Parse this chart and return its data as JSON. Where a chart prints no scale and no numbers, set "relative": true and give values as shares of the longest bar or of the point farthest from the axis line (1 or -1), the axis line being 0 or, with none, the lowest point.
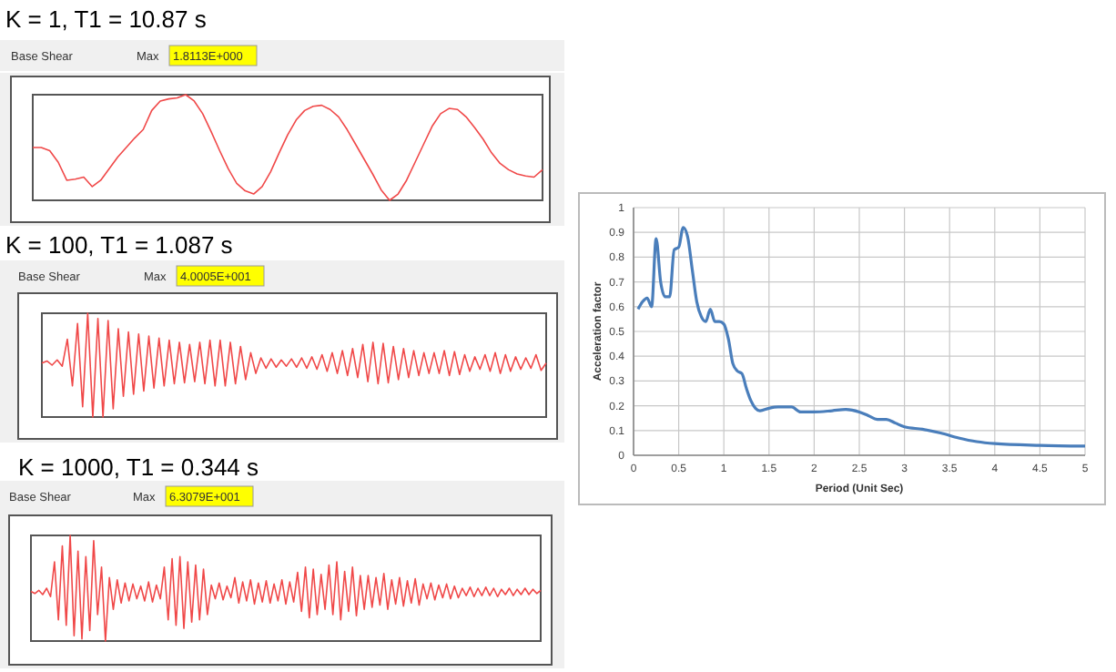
{
  "chart_data": [
    {
      "type": "line",
      "relative": true,
      "title": "K = 1, T1 = 10.87 s",
      "annotations": [
        "Base Shear",
        "Max",
        "1.8113E+000"
      ],
      "color": "#f04848",
      "values": [
        0.5,
        0.5,
        0.47,
        0.36,
        0.19,
        0.2,
        0.22,
        0.13,
        0.19,
        0.3,
        0.41,
        0.5,
        0.59,
        0.67,
        0.85,
        0.94,
        0.96,
        0.97,
        1,
        0.94,
        0.82,
        0.65,
        0.47,
        0.3,
        0.16,
        0.09,
        0.06,
        0.13,
        0.27,
        0.45,
        0.62,
        0.76,
        0.85,
        0.89,
        0.9,
        0.86,
        0.79,
        0.67,
        0.53,
        0.39,
        0.25,
        0.1,
        0,
        0.06,
        0.19,
        0.36,
        0.53,
        0.7,
        0.82,
        0.87,
        0.86,
        0.79,
        0.69,
        0.58,
        0.45,
        0.35,
        0.29,
        0.25,
        0.23,
        0.22,
        0.29
      ]
    },
    {
      "type": "line",
      "relative": true,
      "title": "K = 100, T1 = 1.087 s",
      "annotations": [
        "Base Shear",
        "Max",
        "4.0005E+001"
      ],
      "color": "#f04848",
      "values": [
        0.52,
        0.54,
        0.5,
        0.55,
        0.49,
        0.75,
        0.3,
        0.9,
        0.1,
        1,
        0,
        0.95,
        0,
        0.93,
        0.08,
        0.85,
        0.2,
        0.82,
        0.22,
        0.8,
        0.25,
        0.78,
        0.28,
        0.76,
        0.3,
        0.74,
        0.32,
        0.72,
        0.33,
        0.7,
        0.34,
        0.72,
        0.32,
        0.74,
        0.3,
        0.74,
        0.3,
        0.72,
        0.32,
        0.68,
        0.36,
        0.62,
        0.42,
        0.57,
        0.47,
        0.56,
        0.48,
        0.55,
        0.49,
        0.56,
        0.48,
        0.57,
        0.47,
        0.58,
        0.46,
        0.6,
        0.44,
        0.62,
        0.42,
        0.64,
        0.4,
        0.66,
        0.38,
        0.7,
        0.34,
        0.72,
        0.32,
        0.71,
        0.33,
        0.68,
        0.36,
        0.66,
        0.38,
        0.64,
        0.4,
        0.62,
        0.42,
        0.62,
        0.42,
        0.64,
        0.4,
        0.63,
        0.41,
        0.6,
        0.44,
        0.58,
        0.46,
        0.6,
        0.44,
        0.62,
        0.42,
        0.6,
        0.44,
        0.58,
        0.46,
        0.57,
        0.47,
        0.6,
        0.45,
        0.52
      ]
    },
    {
      "type": "line",
      "relative": true,
      "title": "K = 1000, T1 = 0.344 s",
      "annotations": [
        "Base Shear",
        "Max",
        "6.3079E+001"
      ],
      "color": "#f04848",
      "values": [
        0.47,
        0.45,
        0.48,
        0.44,
        0.5,
        0.42,
        0.75,
        0.2,
        0.9,
        0.15,
        1,
        0.05,
        0.85,
        0.02,
        0.8,
        0.1,
        0.95,
        0.25,
        0.7,
        0,
        0.6,
        0.3,
        0.58,
        0.36,
        0.55,
        0.38,
        0.54,
        0.4,
        0.52,
        0.38,
        0.56,
        0.37,
        0.53,
        0.4,
        0.7,
        0.2,
        0.78,
        0.15,
        0.8,
        0.12,
        0.75,
        0.18,
        0.72,
        0.2,
        0.68,
        0.25,
        0.53,
        0.4,
        0.55,
        0.39,
        0.52,
        0.41,
        0.6,
        0.36,
        0.56,
        0.38,
        0.58,
        0.35,
        0.55,
        0.37,
        0.57,
        0.36,
        0.54,
        0.38,
        0.58,
        0.35,
        0.56,
        0.37,
        0.65,
        0.28,
        0.7,
        0.22,
        0.68,
        0.25,
        0.63,
        0.3,
        0.72,
        0.25,
        0.75,
        0.2,
        0.66,
        0.28,
        0.7,
        0.24,
        0.62,
        0.3,
        0.62,
        0.32,
        0.6,
        0.34,
        0.64,
        0.3,
        0.58,
        0.35,
        0.6,
        0.33,
        0.57,
        0.36,
        0.59,
        0.34,
        0.54,
        0.4,
        0.55,
        0.39,
        0.53,
        0.41,
        0.54,
        0.4,
        0.52,
        0.41,
        0.5,
        0.43,
        0.51,
        0.42,
        0.5,
        0.43,
        0.51,
        0.43,
        0.5,
        0.42,
        0.49,
        0.44,
        0.5,
        0.43,
        0.49,
        0.44,
        0.5,
        0.44,
        0.49,
        0.45,
        0.48
      ]
    },
    {
      "type": "line",
      "xlabel": "Period (Unit Sec)",
      "ylabel": "Acceleration factor",
      "color": "#4a7ebb",
      "grid": true,
      "xlim": [
        0,
        5
      ],
      "xticks": [
        0,
        0.5,
        1,
        1.5,
        2,
        2.5,
        3,
        3.5,
        4,
        4.5,
        5
      ],
      "ylim": [
        0,
        1
      ],
      "yticks": [
        0,
        0.1,
        0.2,
        0.3,
        0.4,
        0.5,
        0.6,
        0.7,
        0.8,
        0.9,
        1
      ],
      "x": [
        0.05,
        0.1,
        0.15,
        0.2,
        0.25,
        0.3,
        0.35,
        0.4,
        0.45,
        0.5,
        0.55,
        0.6,
        0.65,
        0.7,
        0.75,
        0.8,
        0.85,
        0.9,
        0.95,
        1.0,
        1.05,
        1.1,
        1.15,
        1.2,
        1.25,
        1.3,
        1.35,
        1.4,
        1.5,
        1.6,
        1.75,
        1.85,
        2.0,
        2.2,
        2.35,
        2.5,
        2.6,
        2.7,
        2.8,
        2.9,
        3.0,
        3.2,
        3.4,
        3.6,
        3.8,
        4.0,
        4.5,
        5.0
      ],
      "values": [
        0.59,
        0.62,
        0.635,
        0.6,
        0.875,
        0.7,
        0.64,
        0.64,
        0.83,
        0.84,
        0.92,
        0.88,
        0.75,
        0.62,
        0.56,
        0.54,
        0.59,
        0.54,
        0.54,
        0.53,
        0.47,
        0.37,
        0.34,
        0.33,
        0.27,
        0.22,
        0.19,
        0.18,
        0.19,
        0.195,
        0.195,
        0.175,
        0.175,
        0.18,
        0.185,
        0.175,
        0.16,
        0.145,
        0.145,
        0.13,
        0.115,
        0.105,
        0.09,
        0.07,
        0.055,
        0.047,
        0.04,
        0.037
      ]
    }
  ]
}
